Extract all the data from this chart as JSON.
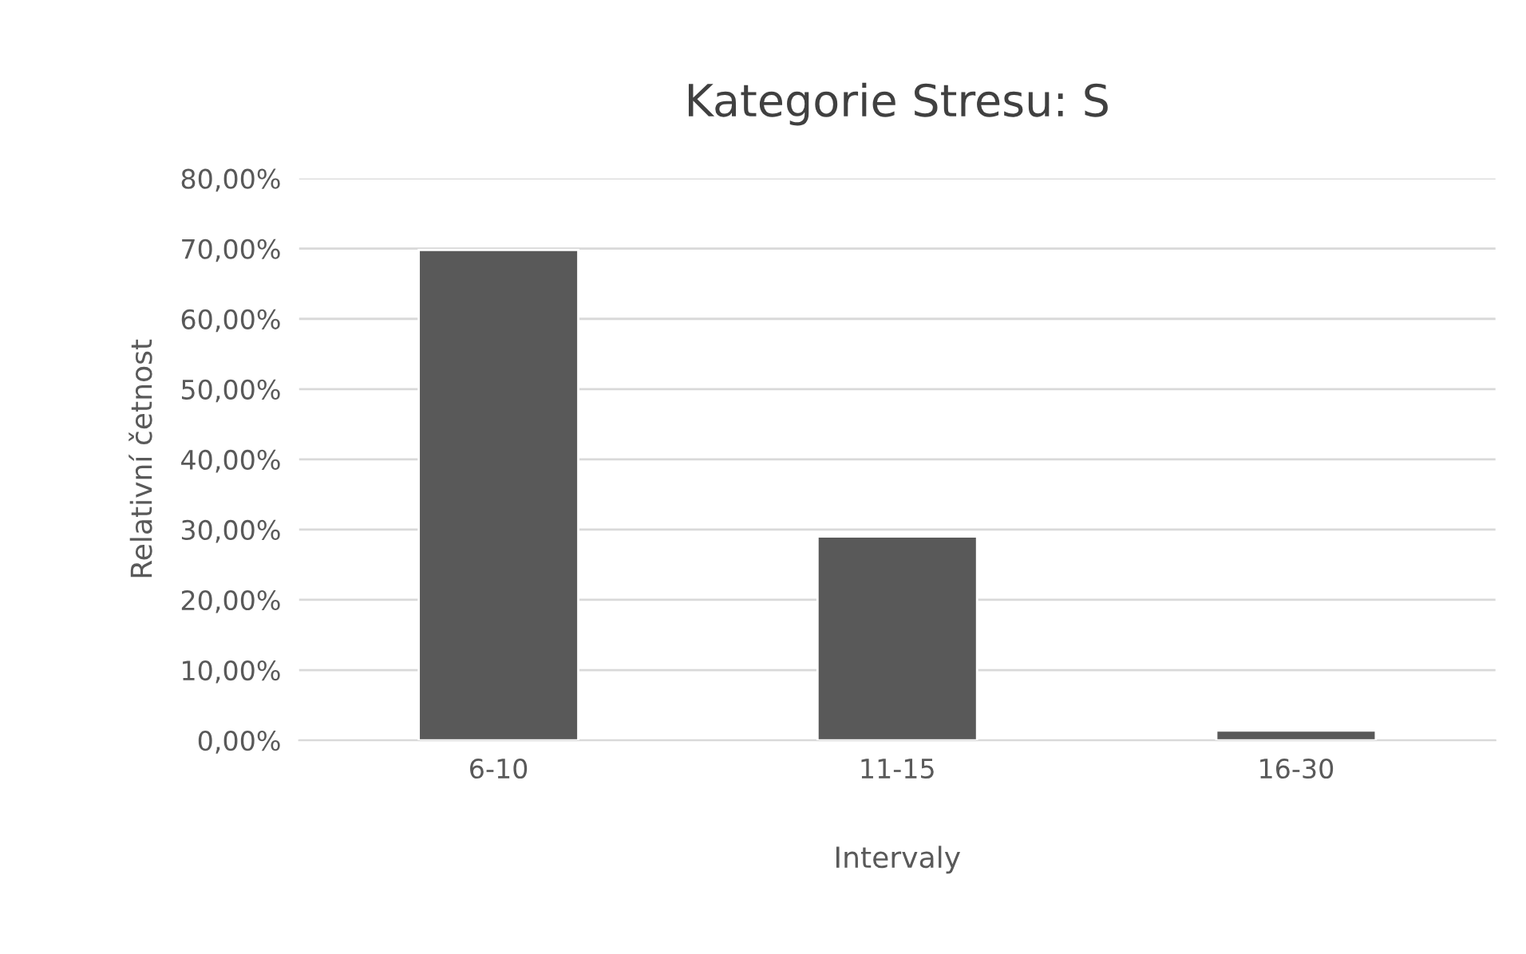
{
  "chart_data": {
    "type": "bar",
    "title": "Kategorie Stresu: S",
    "xlabel": "Intervaly",
    "ylabel": "Relativní četnost",
    "categories": [
      "6-10",
      "11-15",
      "16-30"
    ],
    "values": [
      69.8,
      29.0,
      1.4
    ],
    "color": "#595959",
    "ylim": [
      0,
      80
    ],
    "yticks": [
      {
        "value": 0,
        "label": "0,00%"
      },
      {
        "value": 10,
        "label": "10,00%"
      },
      {
        "value": 20,
        "label": "20,00%"
      },
      {
        "value": 30,
        "label": "30,00%"
      },
      {
        "value": 40,
        "label": "40,00%"
      },
      {
        "value": 50,
        "label": "50,00%"
      },
      {
        "value": 60,
        "label": "60,00%"
      },
      {
        "value": 70,
        "label": "70,00%"
      },
      {
        "value": 80,
        "label": "80,00%"
      }
    ],
    "grid": "y",
    "legend": false
  }
}
